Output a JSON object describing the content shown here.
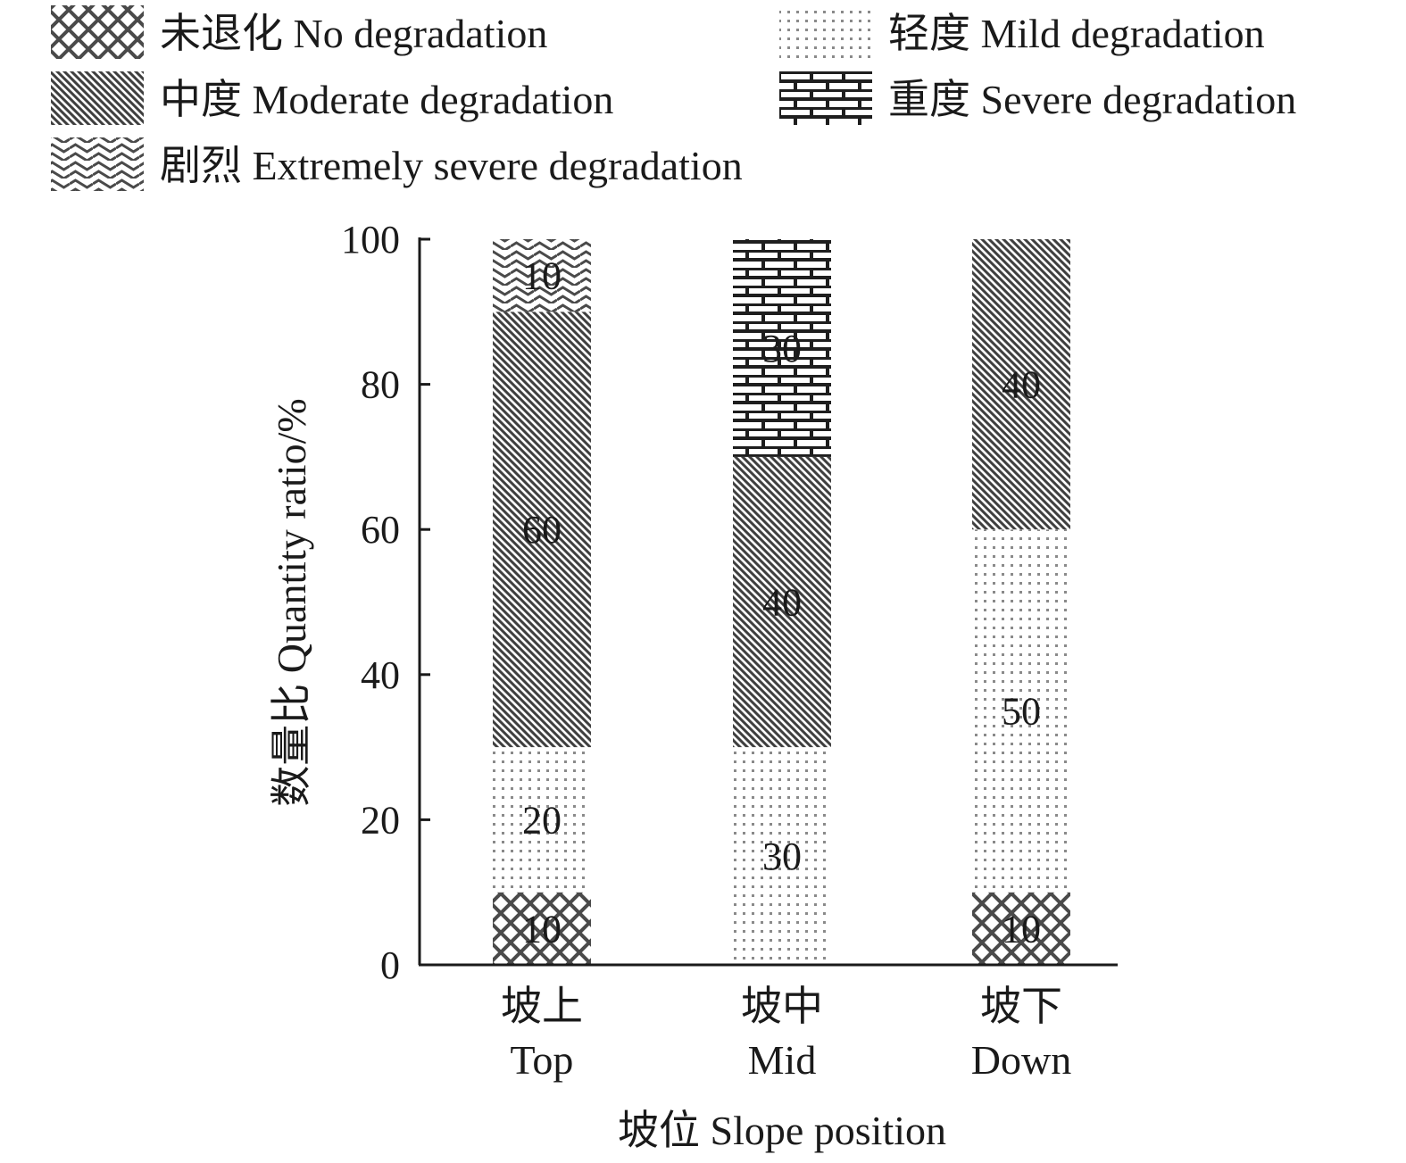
{
  "chart_data": {
    "type": "stacked-bar",
    "xlabel": "坡位 Slope position",
    "ylabel": "数量比 Quantity ratio/%",
    "ylim": [
      0,
      100
    ],
    "yticks": [
      "0",
      "20",
      "40",
      "60",
      "80",
      "100"
    ],
    "categories": [
      {
        "cn": "坡上",
        "en": "Top"
      },
      {
        "cn": "坡中",
        "en": "Mid"
      },
      {
        "cn": "坡下",
        "en": "Down"
      }
    ],
    "series": [
      {
        "name": "未退化 No degradation",
        "pattern": "crosshatch",
        "values": [
          10,
          0,
          10
        ]
      },
      {
        "name": "轻度 Mild degradation",
        "pattern": "dots",
        "values": [
          20,
          30,
          50
        ]
      },
      {
        "name": "中度 Moderate degradation",
        "pattern": "diagonal",
        "values": [
          60,
          40,
          40
        ]
      },
      {
        "name": "重度 Severe degradation",
        "pattern": "brick",
        "values": [
          0,
          30,
          0
        ]
      },
      {
        "name": "剧烈 Extremely severe degradation",
        "pattern": "wave",
        "values": [
          10,
          0,
          0
        ]
      }
    ],
    "legend_position": "top",
    "grid": false
  }
}
